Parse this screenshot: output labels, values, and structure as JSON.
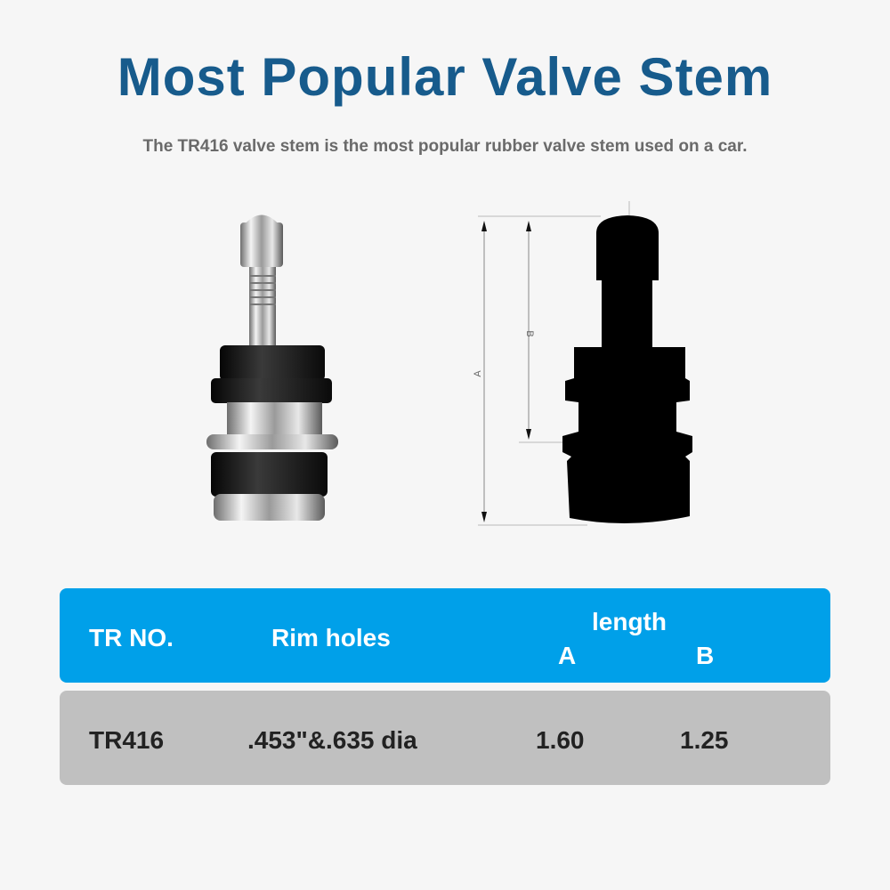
{
  "title": "Most Popular Valve Stem",
  "subtitle": "The TR416 valve stem is the most popular rubber valve stem used on a car.",
  "diagram": {
    "label_a": "A",
    "label_b": "B"
  },
  "table": {
    "headers": {
      "tr_no": "TR NO.",
      "rim_holes": "Rim holes",
      "length": "length",
      "a": "A",
      "b": "B"
    },
    "rows": [
      {
        "tr_no": "TR416",
        "rim_holes": ".453\"&.635 dia",
        "a": "1.60",
        "b": "1.25"
      }
    ]
  },
  "colors": {
    "title": "#175b8c",
    "header_bg": "#00a0e9",
    "row_bg": "#c0c0c0",
    "background": "#f6f6f6"
  }
}
